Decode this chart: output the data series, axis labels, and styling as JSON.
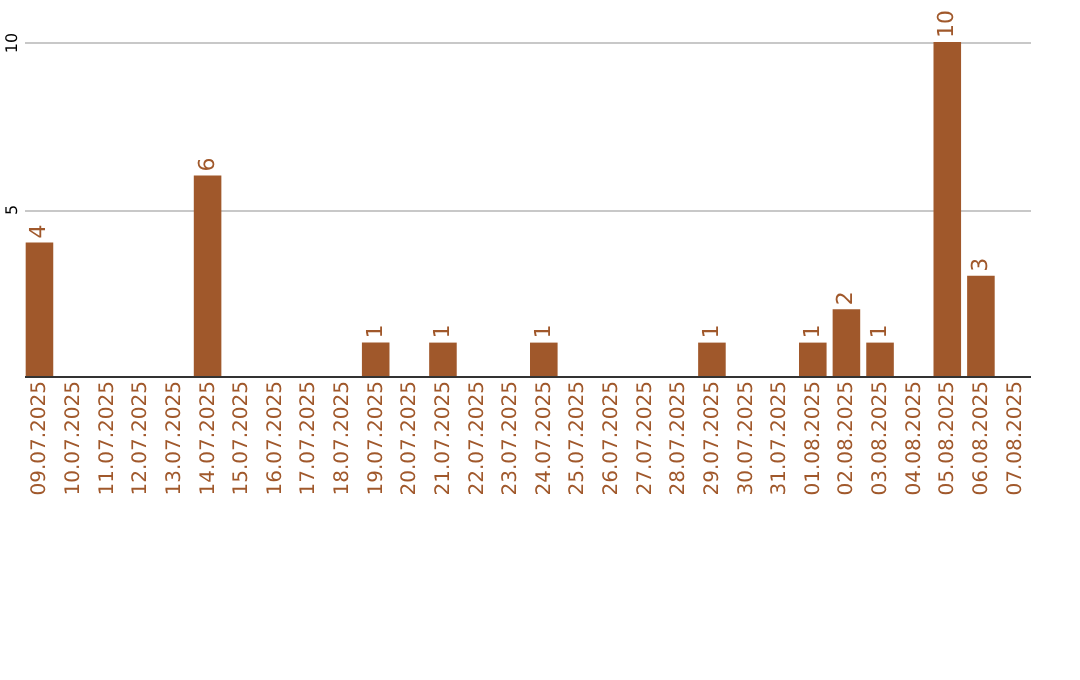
{
  "chart_data": {
    "type": "bar",
    "categories": [
      "09.07.2025",
      "10.07.2025",
      "11.07.2025",
      "12.07.2025",
      "13.07.2025",
      "14.07.2025",
      "15.07.2025",
      "16.07.2025",
      "17.07.2025",
      "18.07.2025",
      "19.07.2025",
      "20.07.2025",
      "21.07.2025",
      "22.07.2025",
      "23.07.2025",
      "24.07.2025",
      "25.07.2025",
      "26.07.2025",
      "27.07.2025",
      "28.07.2025",
      "29.07.2025",
      "30.07.2025",
      "31.07.2025",
      "01.08.2025",
      "02.08.2025",
      "03.08.2025",
      "04.08.2025",
      "05.08.2025",
      "06.08.2025",
      "07.08.2025"
    ],
    "values": [
      4,
      0,
      0,
      0,
      0,
      6,
      0,
      0,
      0,
      0,
      1,
      0,
      1,
      0,
      0,
      1,
      0,
      0,
      0,
      0,
      1,
      0,
      0,
      1,
      2,
      1,
      0,
      10,
      3,
      0
    ],
    "value_labels": [
      "4",
      null,
      null,
      null,
      null,
      "6",
      null,
      null,
      null,
      null,
      "1",
      null,
      "1",
      null,
      null,
      "1",
      null,
      null,
      null,
      null,
      "1",
      null,
      null,
      "1",
      "2",
      "1",
      null,
      "10",
      "3",
      null
    ],
    "color": "#a0582b",
    "ylim": [
      0,
      10
    ],
    "yticks": [
      5,
      10
    ],
    "grid": "y"
  }
}
